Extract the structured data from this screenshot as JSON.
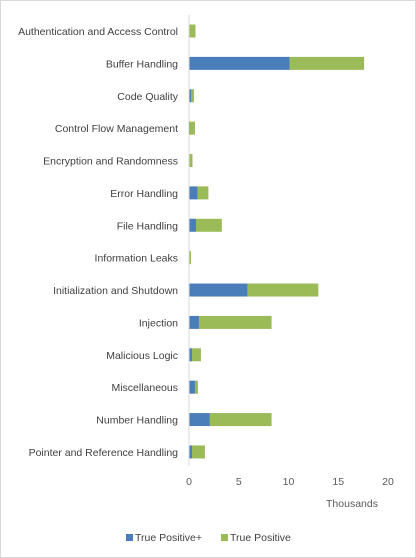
{
  "chart_data": {
    "type": "bar",
    "orientation": "horizontal",
    "stacked": true,
    "categories": [
      "Authentication and Access Control",
      "Buffer Handling",
      "Code Quality",
      "Control Flow Management",
      "Encryption and Randomness",
      "Error Handling",
      "File Handling",
      "Information Leaks",
      "Initialization and Shutdown",
      "Injection",
      "Malicious Logic",
      "Miscellaneous",
      "Number Handling",
      "Pointer and Reference Handling"
    ],
    "series": [
      {
        "name": "True Positive+",
        "color": "#4a7ebb",
        "values": [
          0.05,
          10.1,
          0.2,
          0.1,
          0.05,
          0.85,
          0.7,
          0.0,
          5.9,
          1.0,
          0.3,
          0.6,
          2.1,
          0.3
        ]
      },
      {
        "name": "True Positive",
        "color": "#9bbb59",
        "values": [
          0.6,
          7.5,
          0.3,
          0.5,
          0.3,
          1.1,
          2.6,
          0.2,
          7.1,
          7.3,
          0.9,
          0.3,
          6.2,
          1.3
        ]
      }
    ],
    "xlabel": "Thousands",
    "xlim": [
      0,
      20
    ],
    "xticks": [
      "0",
      "5",
      "10",
      "15",
      "20"
    ],
    "grid": false,
    "legend_position": "bottom"
  }
}
